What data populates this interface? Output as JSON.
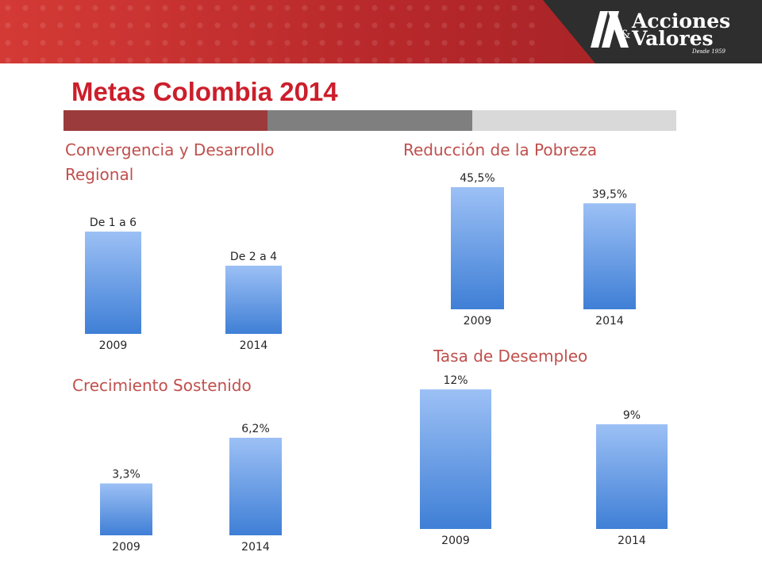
{
  "header": {
    "logo": {
      "line1": "Acciones",
      "amp": "&",
      "line2": "Valores",
      "since": "Desde 1959"
    }
  },
  "page": {
    "title": "Metas Colombia 2014"
  },
  "colors": {
    "accent_red": "#cc1e2b",
    "chart_title": "#c0504d",
    "bar_top": "#9cc0f5",
    "bar_bottom": "#3f7fd6"
  },
  "chart_data": [
    {
      "type": "bar",
      "title": "Convergencia y Desarrollo Regional",
      "categories": [
        "2009",
        "2014"
      ],
      "values": [
        6,
        4
      ],
      "value_labels": [
        "De 1 a 6",
        "De 2 a 4"
      ],
      "xlabel": "",
      "ylabel": ""
    },
    {
      "type": "bar",
      "title": "Reducción de la Pobreza",
      "categories": [
        "2009",
        "2014"
      ],
      "values": [
        45.5,
        39.5
      ],
      "value_labels": [
        "45,5%",
        "39,5%"
      ],
      "xlabel": "",
      "ylabel": ""
    },
    {
      "type": "bar",
      "title": "Tasa de Desempleo",
      "categories": [
        "2009",
        "2014"
      ],
      "values": [
        12,
        9
      ],
      "value_labels": [
        "12%",
        "9%"
      ],
      "xlabel": "",
      "ylabel": ""
    },
    {
      "type": "bar",
      "title": "Crecimiento Sostenido",
      "categories": [
        "2009",
        "2014"
      ],
      "values": [
        3.3,
        6.2
      ],
      "value_labels": [
        "3,3%",
        "6,2%"
      ],
      "xlabel": "",
      "ylabel": ""
    }
  ]
}
